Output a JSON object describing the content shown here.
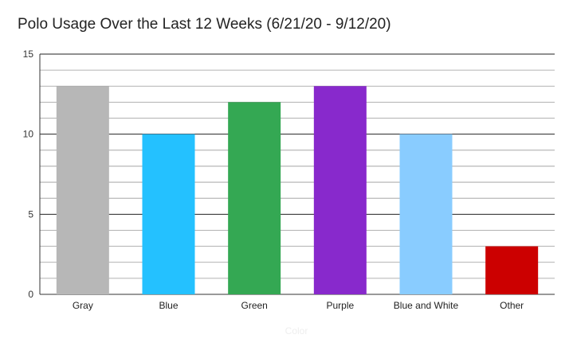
{
  "chart_data": {
    "type": "bar",
    "title": "Polo Usage Over the Last 12 Weeks (6/21/20 - 9/12/20)",
    "xlabel": "Color",
    "ylabel": "",
    "categories": [
      "Gray",
      "Blue",
      "Green",
      "Purple",
      "Blue and White",
      "Other"
    ],
    "values": [
      13,
      10,
      12,
      13,
      10,
      3
    ],
    "colors": [
      "#b7b7b7",
      "#24c1ff",
      "#34a853",
      "#8829cc",
      "#89ccff",
      "#cc0000"
    ],
    "ylim": [
      0,
      15
    ],
    "yticks": [
      "0",
      "5",
      "10",
      "15"
    ],
    "grid": true,
    "minor_grid_step": 1,
    "legend": "none"
  }
}
